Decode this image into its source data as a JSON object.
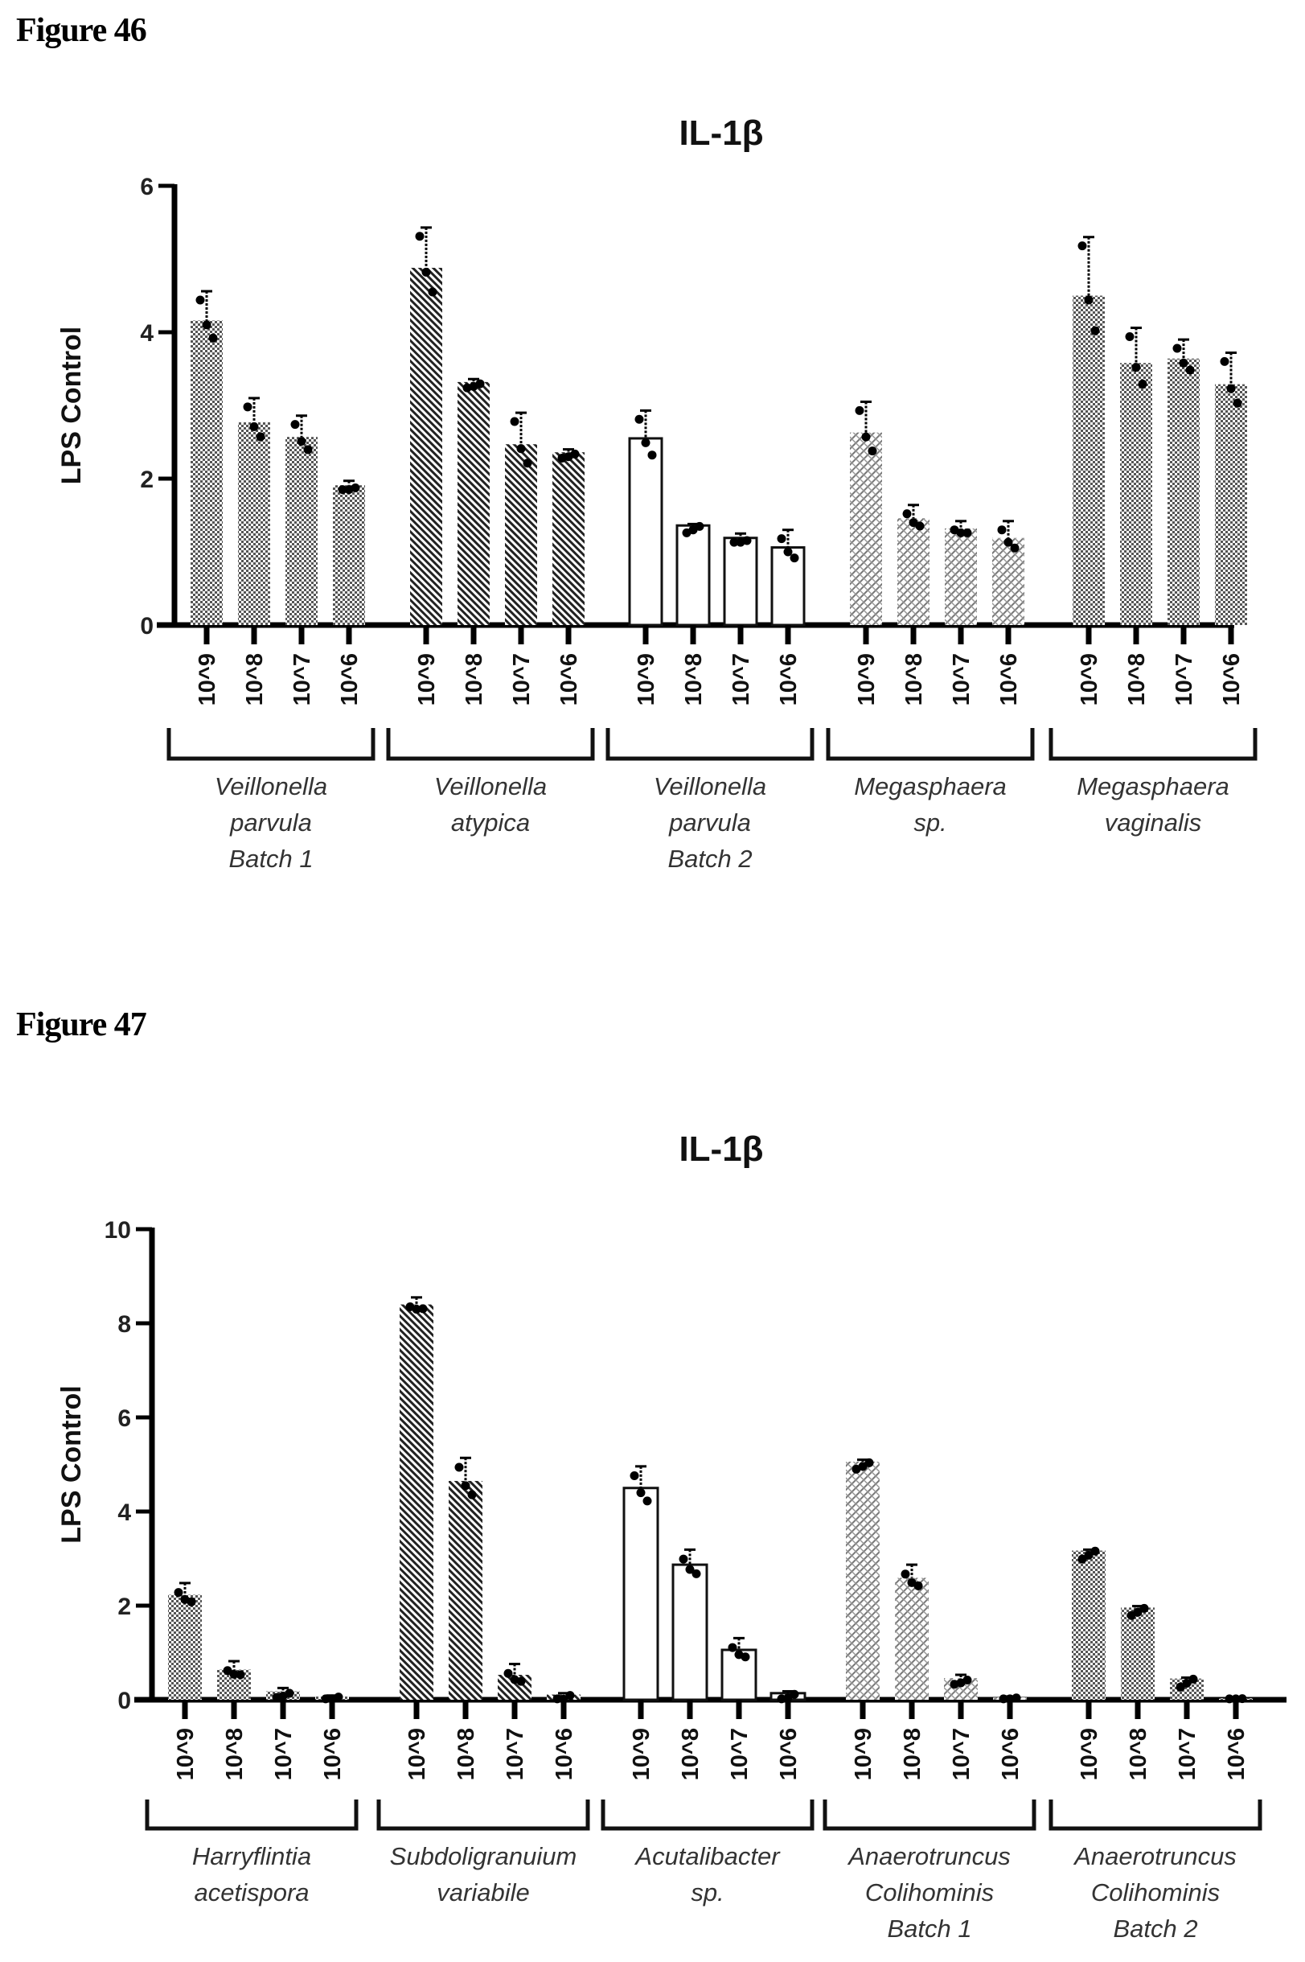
{
  "figures": [
    {
      "label": "Figure 46"
    },
    {
      "label": "Figure 47"
    }
  ],
  "chart_data": [
    {
      "type": "bar",
      "title": "IL-1β",
      "xlabel": "",
      "ylabel": "LPS Control",
      "ylim": [
        0,
        6
      ],
      "yticks": [
        0,
        2,
        4,
        6
      ],
      "grid": false,
      "categories": [
        "10^9",
        "10^8",
        "10^7",
        "10^6"
      ],
      "groups": [
        {
          "name_lines": [
            "Veillonella",
            "parvula",
            "Batch 1"
          ],
          "pattern": "checker",
          "values": [
            4.16,
            2.77,
            2.57,
            1.91
          ],
          "error_top": [
            4.56,
            3.1,
            2.86,
            1.97
          ]
        },
        {
          "name_lines": [
            "Veillonella",
            "atypica"
          ],
          "pattern": "diagonal",
          "values": [
            4.88,
            3.32,
            2.47,
            2.36
          ],
          "error_top": [
            5.43,
            3.36,
            2.9,
            2.4
          ]
        },
        {
          "name_lines": [
            "Veillonella",
            "parvula",
            "Batch 2"
          ],
          "pattern": "open",
          "values": [
            2.55,
            1.36,
            1.19,
            1.06
          ],
          "error_top": [
            2.93,
            1.38,
            1.25,
            1.3
          ]
        },
        {
          "name_lines": [
            "Megasphaera",
            "sp."
          ],
          "pattern": "crosshatch",
          "values": [
            2.63,
            1.46,
            1.32,
            1.19
          ],
          "error_top": [
            3.05,
            1.64,
            1.42,
            1.42
          ]
        },
        {
          "name_lines": [
            "Megasphaera",
            "vaginalis"
          ],
          "pattern": "checker",
          "values": [
            4.5,
            3.58,
            3.64,
            3.29
          ],
          "error_top": [
            5.3,
            4.06,
            3.9,
            3.72
          ]
        }
      ]
    },
    {
      "type": "bar",
      "title": "IL-1β",
      "xlabel": "",
      "ylabel": "LPS Control",
      "ylim": [
        0,
        10
      ],
      "yticks": [
        0,
        2,
        4,
        6,
        8,
        10
      ],
      "grid": false,
      "categories": [
        "10^9",
        "10^8",
        "10^7",
        "10^6"
      ],
      "groups": [
        {
          "name_lines": [
            "Harryflintia",
            "acetispora"
          ],
          "pattern": "checker",
          "values": [
            2.23,
            0.64,
            0.18,
            0.07
          ],
          "error_top": [
            2.48,
            0.82,
            0.25,
            0.09
          ]
        },
        {
          "name_lines": [
            "Subdoligranuium",
            "variabile"
          ],
          "pattern": "diagonal",
          "values": [
            8.4,
            4.65,
            0.53,
            0.11
          ],
          "error_top": [
            8.55,
            5.14,
            0.76,
            0.14
          ]
        },
        {
          "name_lines": [
            "Acutalibacter",
            "sp."
          ],
          "pattern": "open",
          "values": [
            4.5,
            2.87,
            1.06,
            0.14
          ],
          "error_top": [
            4.96,
            3.19,
            1.31,
            0.18
          ]
        },
        {
          "name_lines": [
            "Anaerotruncus",
            "Colihominis",
            "Batch 1"
          ],
          "pattern": "crosshatch",
          "values": [
            5.06,
            2.59,
            0.46,
            0.05
          ],
          "error_top": [
            5.1,
            2.87,
            0.53,
            0.07
          ]
        },
        {
          "name_lines": [
            "Anaerotruncus",
            "Colihominis",
            "Batch 2"
          ],
          "pattern": "checker",
          "values": [
            3.17,
            1.96,
            0.45,
            0.03
          ],
          "error_top": [
            3.19,
            1.99,
            0.47,
            0.04
          ]
        }
      ]
    }
  ]
}
